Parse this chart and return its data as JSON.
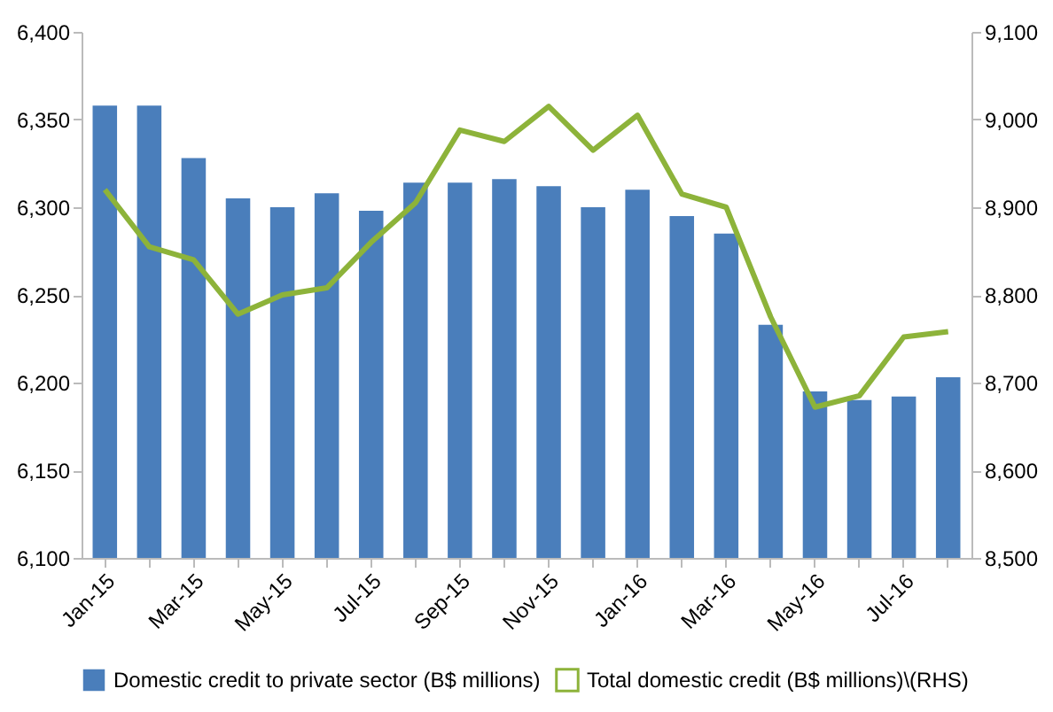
{
  "chart_data": {
    "type": "bar",
    "categories": [
      "Jan-15",
      null,
      "Mar-15",
      null,
      "May-15",
      null,
      "Jul-15",
      null,
      "Sep-15",
      null,
      "Nov-15",
      null,
      "Jan-16",
      null,
      "Mar-16",
      null,
      "May-16",
      null,
      "Jul-16",
      null
    ],
    "series": [
      {
        "name": "Domestic credit to private sector (B$ millions)",
        "color": "#4a7ebb",
        "values": [
          6358,
          6358,
          6328,
          6305,
          6300,
          6308,
          6298,
          6314,
          6314,
          6316,
          6312,
          6300,
          6310,
          6295,
          6285,
          6233,
          6195,
          6190,
          6192,
          6203
        ]
      },
      {
        "name": "Total domestic credit (B$ millions)\\(RHS)",
        "type": "line",
        "axis": "y2",
        "color": "#8db33a",
        "values": [
          8920,
          8855,
          8840,
          8778,
          8800,
          8808,
          8860,
          8905,
          8988,
          8975,
          9015,
          8965,
          9005,
          8915,
          8900,
          8775,
          8672,
          8685,
          8752,
          8758
        ]
      }
    ],
    "ylim": [
      6100,
      6400
    ],
    "yticks": [
      {
        "value": 6100,
        "label": "6,100"
      },
      {
        "value": 6150,
        "label": "6,150"
      },
      {
        "value": 6200,
        "label": "6,200"
      },
      {
        "value": 6250,
        "label": "6,250"
      },
      {
        "value": 6300,
        "label": "6,300"
      },
      {
        "value": 6350,
        "label": "6,350"
      },
      {
        "value": 6400,
        "label": "6,400"
      }
    ],
    "y2lim": [
      8500,
      9100
    ],
    "y2ticks": [
      {
        "value": 8500,
        "label": "8,500"
      },
      {
        "value": 8600,
        "label": "8,600"
      },
      {
        "value": 8700,
        "label": "8,700"
      },
      {
        "value": 8800,
        "label": "8,800"
      },
      {
        "value": 8900,
        "label": "8,900"
      },
      {
        "value": 9000,
        "label": "9,000"
      },
      {
        "value": 9100,
        "label": "9,100"
      }
    ],
    "grid": false,
    "legend": "bottom",
    "marker": "none",
    "line_style": "solid"
  }
}
